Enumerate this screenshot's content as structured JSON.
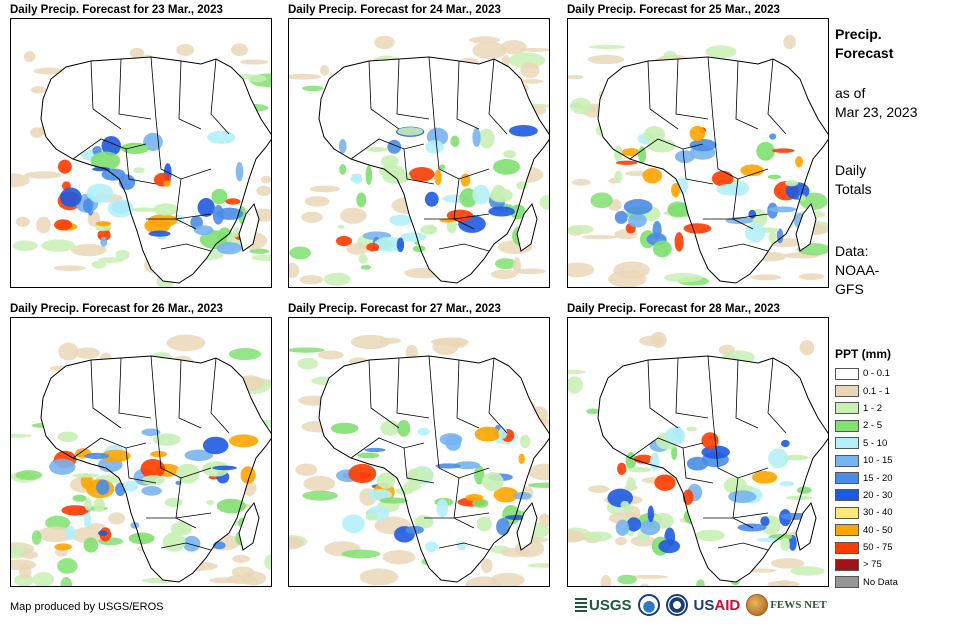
{
  "panels": [
    {
      "title": "Daily Precip. Forecast for 23 Mar., 2023"
    },
    {
      "title": "Daily Precip. Forecast for 24 Mar., 2023"
    },
    {
      "title": "Daily Precip. Forecast for 25 Mar., 2023"
    },
    {
      "title": "Daily Precip. Forecast for 26 Mar., 2023"
    },
    {
      "title": "Daily Precip. Forecast for 27 Mar., 2023"
    },
    {
      "title": "Daily Precip. Forecast for 28 Mar., 2023"
    }
  ],
  "side": {
    "title_line1": "Precip.",
    "title_line2": "Forecast",
    "asof_line1": "as of",
    "asof_line2": "Mar 23, 2023",
    "totals_line1": "Daily",
    "totals_line2": "Totals",
    "source_line1": "Data:",
    "source_line2": "NOAA-",
    "source_line3": "GFS"
  },
  "legend": {
    "title": "PPT (mm)",
    "items": [
      {
        "label": "0 - 0.1",
        "color": "#ffffff"
      },
      {
        "label": "0.1 - 1",
        "color": "#ead7b7"
      },
      {
        "label": "1 - 2",
        "color": "#c8f0b4"
      },
      {
        "label": "2 - 5",
        "color": "#80e070"
      },
      {
        "label": "5 - 10",
        "color": "#b4f0f8"
      },
      {
        "label": "10 - 15",
        "color": "#78b4f0"
      },
      {
        "label": "15 - 20",
        "color": "#4a8ce6"
      },
      {
        "label": "20 - 30",
        "color": "#1e5ae0"
      },
      {
        "label": "30 - 40",
        "color": "#ffe878"
      },
      {
        "label": "40 - 50",
        "color": "#ffa500"
      },
      {
        "label": "50 - 75",
        "color": "#ff3c00"
      },
      {
        "label": "> 75",
        "color": "#a01414"
      },
      {
        "label": "No Data",
        "color": "#969696"
      }
    ]
  },
  "footer": {
    "credit": "Map produced by USGS/EROS",
    "logo_usgs": "USGS",
    "logo_usaid_a": "US",
    "logo_usaid_b": "AID",
    "logo_fews": "FEWS NET"
  }
}
